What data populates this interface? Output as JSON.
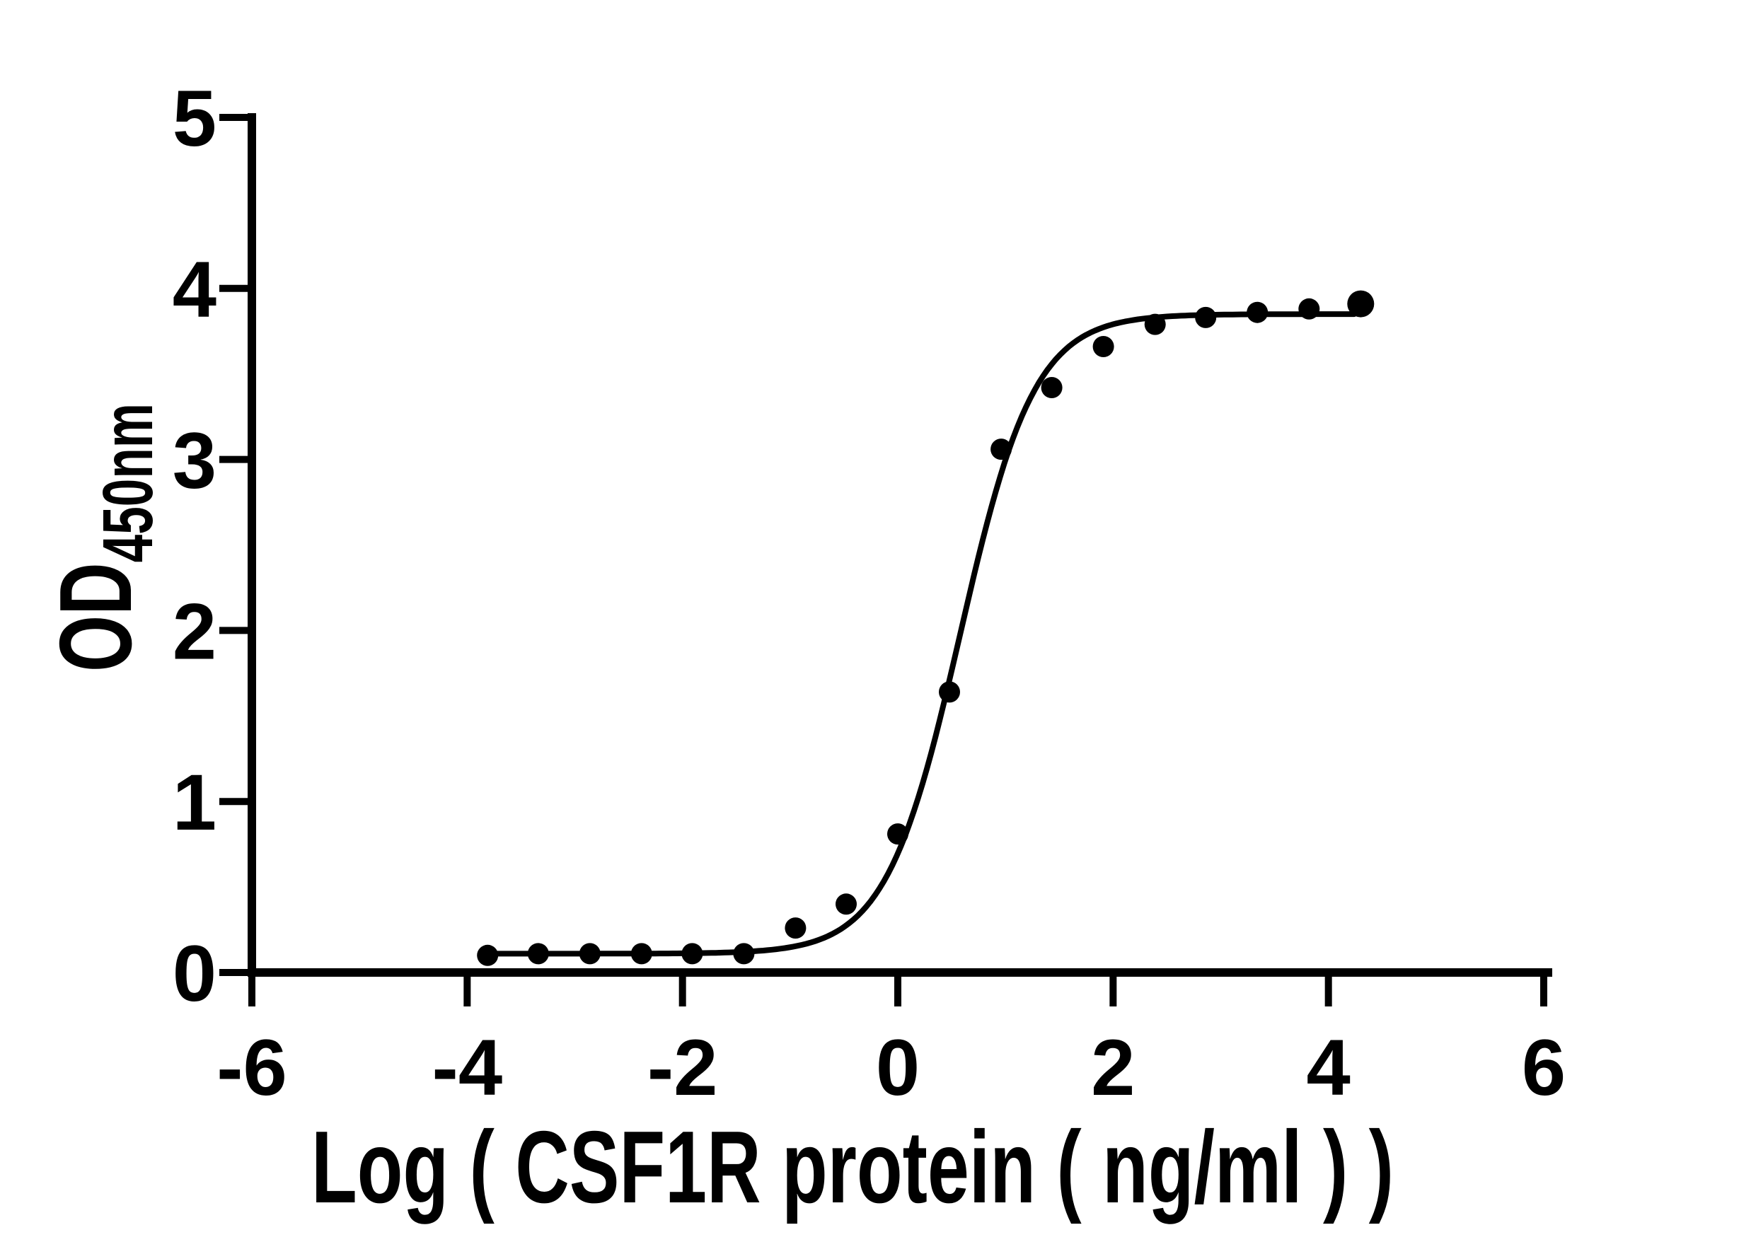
{
  "figure": {
    "background": "#ffffff",
    "ink": "#000000"
  },
  "chart_data": {
    "type": "scatter",
    "title": "",
    "xlabel": "Log ( CSF1R protein ( ng/ml )   )",
    "ylabel_main": "OD",
    "ylabel_sub": "450nm",
    "xlim": [
      -6,
      6
    ],
    "ylim": [
      0,
      5
    ],
    "x_ticks": [
      -6,
      -4,
      -2,
      0,
      2,
      4,
      6
    ],
    "y_ticks": [
      0,
      1,
      2,
      3,
      4,
      5
    ],
    "grid": false,
    "legend": "none",
    "marker": "filled-black-circle",
    "points": [
      {
        "x": -3.81,
        "y": 0.1
      },
      {
        "x": -3.34,
        "y": 0.11
      },
      {
        "x": -2.86,
        "y": 0.11
      },
      {
        "x": -2.38,
        "y": 0.11
      },
      {
        "x": -1.91,
        "y": 0.11
      },
      {
        "x": -1.43,
        "y": 0.11
      },
      {
        "x": -0.95,
        "y": 0.26
      },
      {
        "x": -0.48,
        "y": 0.4
      },
      {
        "x": 0.0,
        "y": 0.81
      },
      {
        "x": 0.48,
        "y": 1.64
      },
      {
        "x": 0.96,
        "y": 3.06
      },
      {
        "x": 1.43,
        "y": 3.42
      },
      {
        "x": 1.91,
        "y": 3.66
      },
      {
        "x": 2.39,
        "y": 3.79
      },
      {
        "x": 2.86,
        "y": 3.83
      },
      {
        "x": 3.34,
        "y": 3.86
      },
      {
        "x": 3.82,
        "y": 3.88
      },
      {
        "x": 4.3,
        "y": 3.91
      }
    ],
    "fit_curve": {
      "model": "4PL",
      "bottom": 0.11,
      "top": 3.85,
      "log_ec50": 0.58,
      "hill": 1.26,
      "x_start": -3.81,
      "x_end": 4.24
    }
  }
}
